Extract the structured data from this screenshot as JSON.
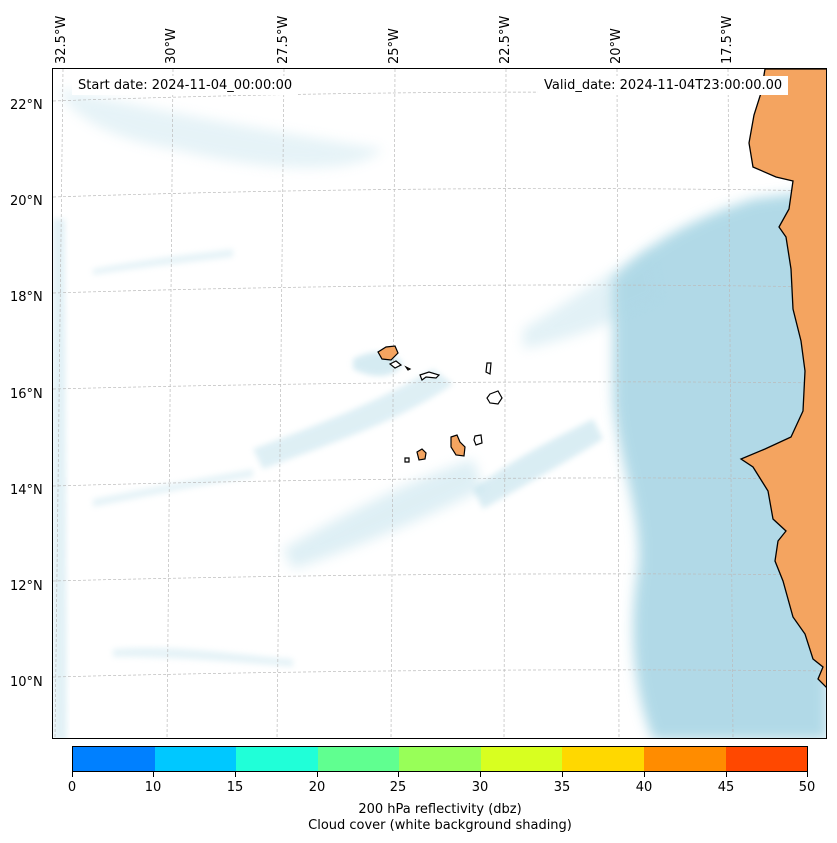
{
  "map": {
    "longitude_labels": [
      "32.5°W",
      "30°W",
      "27.5°W",
      "25°W",
      "22.5°W",
      "20°W",
      "17.5°W"
    ],
    "latitude_labels": [
      "22°N",
      "20°N",
      "18°N",
      "16°N",
      "14°N",
      "12°N",
      "10°N"
    ],
    "start_date": "Start date: 2024-11-04_00:00:00",
    "valid_date": "Valid_date: 2024-11-04T23:00:00.00",
    "land_color": "#f4a460",
    "cloud_color": "#add8e6"
  },
  "colorbar": {
    "tick_labels": [
      "0",
      "10",
      "15",
      "20",
      "25",
      "30",
      "35",
      "40",
      "45",
      "50"
    ],
    "colors": [
      "#0080ff",
      "#00c8ff",
      "#20ffd8",
      "#60ff90",
      "#98ff58",
      "#d8ff20",
      "#ffd800",
      "#ff8c00",
      "#ff4800"
    ],
    "label_line1": "200 hPa reflectivity (dbz)",
    "label_line2": "Cloud cover (white background shading)"
  }
}
